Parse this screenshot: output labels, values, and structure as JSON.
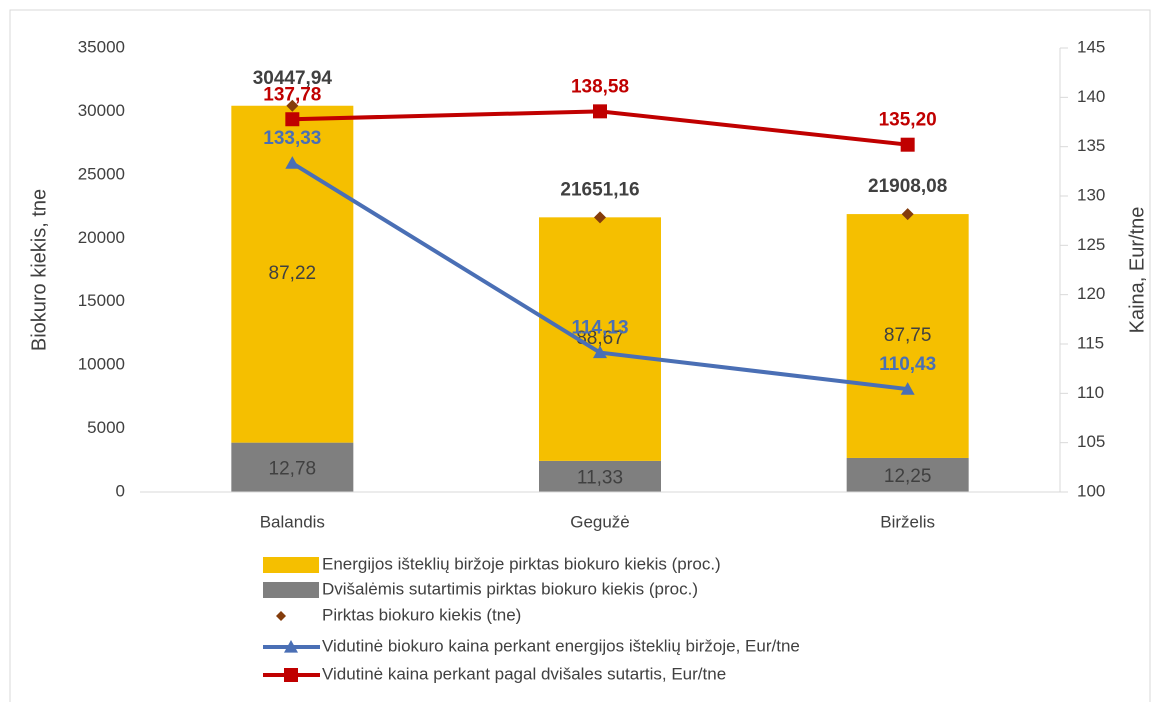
{
  "chart_data": {
    "type": "bar",
    "categories": [
      "Balandis",
      "Gegužė",
      "Birželis"
    ],
    "y_label": "Biokuro kiekis, tne",
    "y2_label": "Kaina, Eur/tne",
    "ylim": [
      0,
      35000
    ],
    "yticks": [
      0,
      5000,
      10000,
      15000,
      20000,
      25000,
      30000,
      35000
    ],
    "y2lim": [
      100,
      145
    ],
    "y2ticks": [
      100,
      105,
      110,
      115,
      120,
      125,
      130,
      135,
      140,
      145
    ],
    "series": [
      {
        "name": "Energijos išteklių biržoje pirktas biokuro kiekis (proc.)",
        "type": "bar",
        "color": "#f5bf00",
        "values": [
          87.22,
          88.67,
          87.75
        ],
        "value_labels": [
          "87,22",
          "88,67",
          "87,75"
        ]
      },
      {
        "name": "Dvišalėmis sutartimis pirktas biokuro kiekis (proc.)",
        "type": "bar",
        "color": "#7f7f7f",
        "values": [
          12.78,
          11.33,
          12.25
        ],
        "value_labels": [
          "12,78",
          "11,33",
          "12,25"
        ]
      },
      {
        "name": "Pirktas biokuro kiekis (tne)",
        "type": "scatter",
        "marker": "diamond",
        "color": "#843c0c",
        "values": [
          30447.94,
          21651.16,
          21908.08
        ],
        "value_labels": [
          "30447,94",
          "21651,16",
          "21908,08"
        ]
      },
      {
        "name": "Vidutinė biokuro kaina perkant energijos išteklių biržoje, Eur/tne",
        "type": "line",
        "axis": "y2",
        "marker": "triangle",
        "color": "#4a6fb5",
        "values": [
          133.33,
          114.13,
          110.43
        ],
        "value_labels": [
          "133,33",
          "114,13",
          "110,43"
        ]
      },
      {
        "name": "Vidutinė kaina perkant pagal dvišales sutartis, Eur/tne",
        "type": "line",
        "axis": "y2",
        "marker": "square",
        "color": "#c00000",
        "values": [
          137.78,
          138.58,
          135.2
        ],
        "value_labels": [
          "137,78",
          "138,58",
          "135,20"
        ]
      }
    ]
  }
}
